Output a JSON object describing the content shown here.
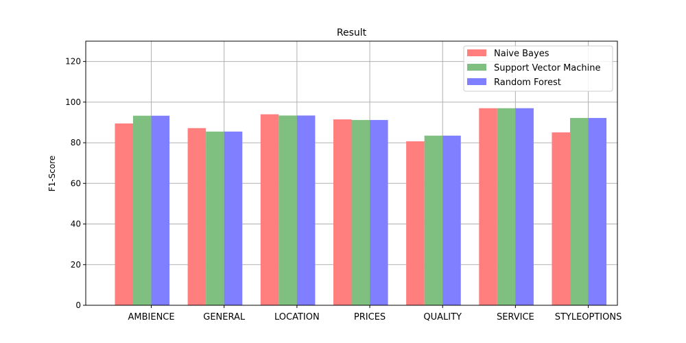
{
  "chart_data": {
    "type": "bar",
    "title": "Result",
    "xlabel": "",
    "ylabel": "F1-Score",
    "ylim": [
      0,
      130
    ],
    "yticks": [
      0,
      20,
      40,
      60,
      80,
      100,
      120
    ],
    "grid": true,
    "legend_position": "top-right",
    "categories": [
      "AMBIENCE",
      "GENERAL",
      "LOCATION",
      "PRICES",
      "QUALITY",
      "SERVICE",
      "STYLEOPTIONS"
    ],
    "series": [
      {
        "name": "Naive Bayes",
        "color": "#ff7f7f",
        "values": [
          89.5,
          87.2,
          94.0,
          91.5,
          80.7,
          97.0,
          85.1
        ]
      },
      {
        "name": "Support Vector Machine",
        "color": "#7fbf7f",
        "values": [
          93.3,
          85.5,
          93.4,
          91.2,
          83.5,
          97.0,
          92.2
        ]
      },
      {
        "name": "Random Forest",
        "color": "#7f7fff",
        "values": [
          93.3,
          85.5,
          93.4,
          91.2,
          83.5,
          97.0,
          92.2
        ]
      }
    ]
  }
}
